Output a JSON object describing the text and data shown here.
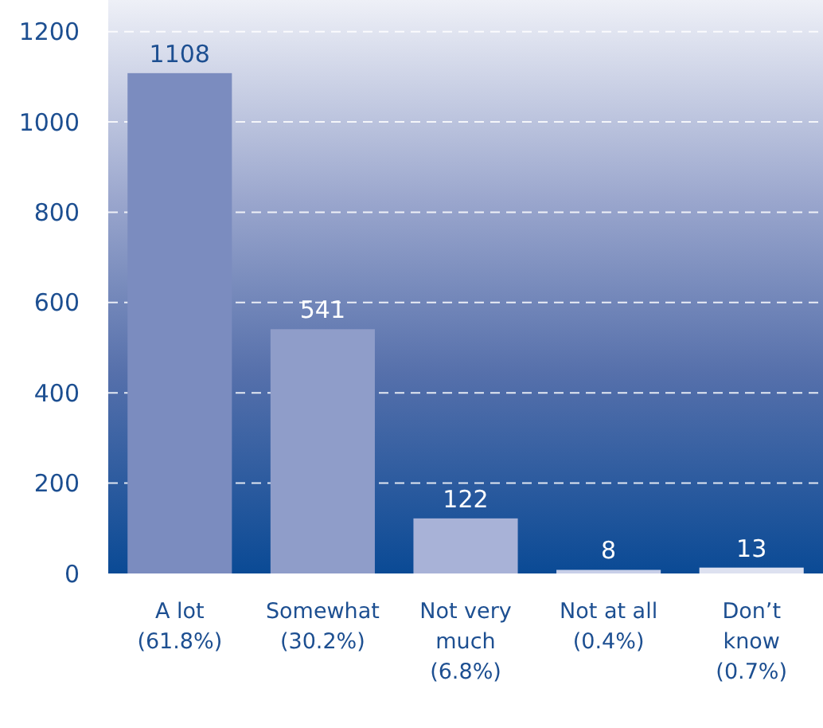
{
  "chart_data": {
    "type": "bar",
    "categories": [
      "A lot\n(61.8%)",
      "Somewhat\n(30.2%)",
      "Not very\nmuch\n(6.8%)",
      "Not at all\n(0.4%)",
      "Don’t\nknow\n(0.7%)"
    ],
    "values": [
      1108,
      541,
      122,
      8,
      13
    ],
    "colors": [
      "#7b8cbf",
      "#8f9dc9",
      "#a8b2d7",
      "#c8cfe8",
      "#dde1f0"
    ],
    "ylim": [
      0,
      1270
    ],
    "yticks": [
      0,
      200,
      400,
      600,
      800,
      1000,
      1200
    ],
    "grid": "y",
    "data_labels": true
  }
}
